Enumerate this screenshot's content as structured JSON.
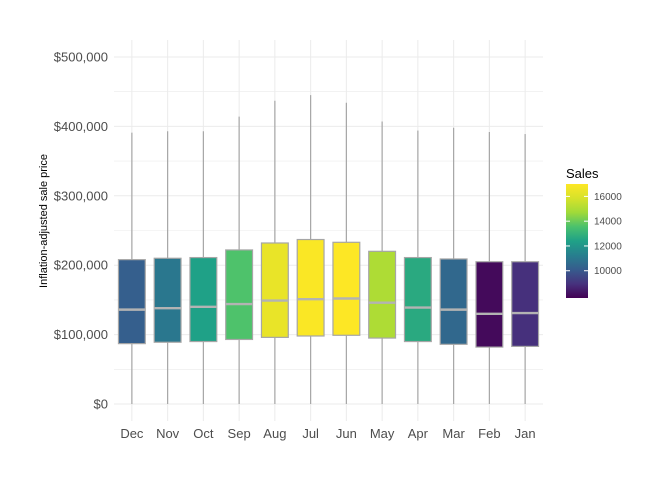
{
  "chart_data": {
    "type": "boxplot",
    "ylabel": "Inflation-adjusted sale price",
    "xlabel": "",
    "ylim": [
      0,
      520000
    ],
    "ytick_values": [
      0,
      100000,
      200000,
      300000,
      400000,
      500000
    ],
    "ytick_labels": [
      "$0",
      "$100,000",
      "$200,000",
      "$300,000",
      "$400,000",
      "$500,000"
    ],
    "categories": [
      "Dec",
      "Nov",
      "Oct",
      "Sep",
      "Aug",
      "Jul",
      "Jun",
      "May",
      "Apr",
      "Mar",
      "Feb",
      "Jan"
    ],
    "boxes": [
      {
        "month": "Dec",
        "whisker_low": 0,
        "q1": 87000,
        "median": 136000,
        "q3": 208000,
        "whisker_high": 391000,
        "sales": 10200
      },
      {
        "month": "Nov",
        "whisker_low": 0,
        "q1": 89000,
        "median": 138000,
        "q3": 210000,
        "whisker_high": 393000,
        "sales": 11000
      },
      {
        "month": "Oct",
        "whisker_low": 0,
        "q1": 90000,
        "median": 140000,
        "q3": 211000,
        "whisker_high": 393000,
        "sales": 12400
      },
      {
        "month": "Sep",
        "whisker_low": 0,
        "q1": 93000,
        "median": 144000,
        "q3": 222000,
        "whisker_high": 414000,
        "sales": 13600
      },
      {
        "month": "Aug",
        "whisker_low": 0,
        "q1": 96000,
        "median": 149000,
        "q3": 232000,
        "whisker_high": 437000,
        "sales": 16400
      },
      {
        "month": "Jul",
        "whisker_low": 0,
        "q1": 98000,
        "median": 151000,
        "q3": 237000,
        "whisker_high": 445000,
        "sales": 16900
      },
      {
        "month": "Jun",
        "whisker_low": 0,
        "q1": 99000,
        "median": 152000,
        "q3": 233000,
        "whisker_high": 434000,
        "sales": 17000
      },
      {
        "month": "May",
        "whisker_low": 0,
        "q1": 95000,
        "median": 146000,
        "q3": 220000,
        "whisker_high": 407000,
        "sales": 15000
      },
      {
        "month": "Apr",
        "whisker_low": 0,
        "q1": 90000,
        "median": 139000,
        "q3": 211000,
        "whisker_high": 394000,
        "sales": 12700
      },
      {
        "month": "Mar",
        "whisker_low": 0,
        "q1": 86000,
        "median": 136000,
        "q3": 209000,
        "whisker_high": 398000,
        "sales": 10500
      },
      {
        "month": "Feb",
        "whisker_low": 0,
        "q1": 82000,
        "median": 130000,
        "q3": 205000,
        "whisker_high": 392000,
        "sales": 8000
      },
      {
        "month": "Jan",
        "whisker_low": 0,
        "q1": 83000,
        "median": 131000,
        "q3": 205000,
        "whisker_high": 389000,
        "sales": 8900
      }
    ],
    "grid": true,
    "legend": {
      "title": "Sales",
      "position": "right",
      "type": "colorbar",
      "colormap": "viridis",
      "range": [
        7800,
        17000
      ],
      "ticks": [
        10000,
        12000,
        14000,
        16000
      ],
      "tick_labels": [
        "10000",
        "12000",
        "14000",
        "16000"
      ]
    },
    "box_outline_color": "#a6a6a6",
    "median_color": "#b3b3b3",
    "gridline_color": "#ebebeb"
  }
}
